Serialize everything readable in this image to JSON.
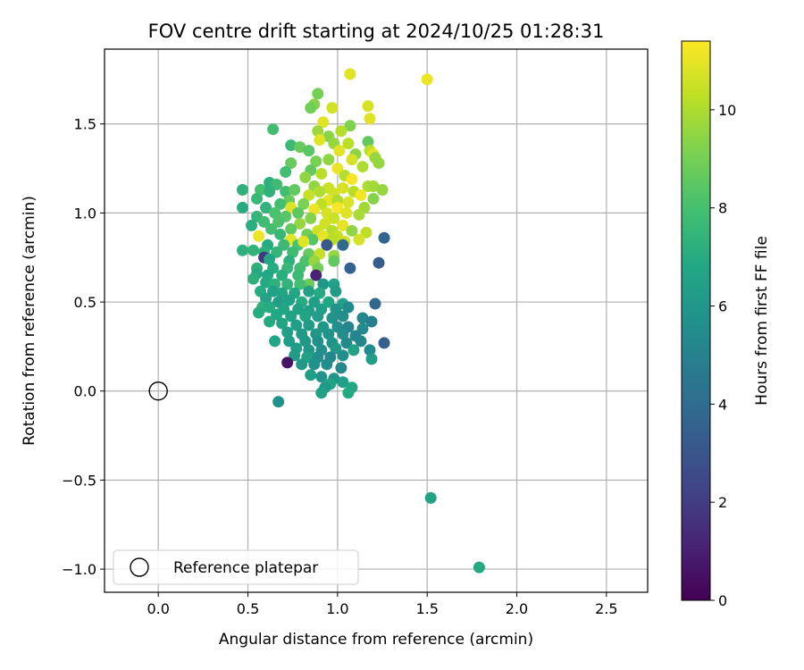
{
  "chart_data": {
    "type": "scatter",
    "title": "FOV centre drift starting at 2024/10/25 01:28:31",
    "xlabel": "Angular distance from reference (arcmin)",
    "ylabel": "Rotation from reference (arcmin)",
    "xlim": [
      -0.3,
      2.73
    ],
    "ylim": [
      -1.13,
      1.92
    ],
    "x_ticks": [
      0.0,
      0.5,
      1.0,
      1.5,
      2.0,
      2.5
    ],
    "x_tick_labels": [
      "0.0",
      "0.5",
      "1.0",
      "1.5",
      "2.0",
      "2.5"
    ],
    "y_ticks": [
      -1.0,
      -0.5,
      0.0,
      0.5,
      1.0,
      1.5
    ],
    "y_tick_labels": [
      "−1.0",
      "−0.5",
      "0.0",
      "0.5",
      "1.0",
      "1.5"
    ],
    "grid": true,
    "legend": {
      "location": "lower-left",
      "entries": [
        "Reference platepar"
      ]
    },
    "reference_point": {
      "x": 0.0,
      "y": 0.0,
      "marker": "open-circle",
      "label": "Reference platepar"
    },
    "colorbar": {
      "label": "Hours from first FF file",
      "colormap": "viridis",
      "range": [
        0,
        11.4
      ],
      "ticks": [
        0,
        2,
        4,
        6,
        8,
        10
      ],
      "tick_labels": [
        "0",
        "2",
        "4",
        "6",
        "8",
        "10"
      ]
    },
    "points": [
      [
        1.07,
        1.78,
        10.9
      ],
      [
        1.5,
        1.75,
        11.1
      ],
      [
        0.89,
        1.67,
        9.0
      ],
      [
        0.87,
        1.61,
        9.3
      ],
      [
        0.85,
        1.59,
        8.9
      ],
      [
        0.97,
        1.59,
        10.6
      ],
      [
        1.17,
        1.6,
        10.7
      ],
      [
        0.92,
        1.51,
        10.9
      ],
      [
        0.64,
        1.47,
        7.9
      ],
      [
        1.07,
        1.49,
        9.2
      ],
      [
        1.18,
        1.53,
        10.9
      ],
      [
        1.02,
        1.46,
        10.1
      ],
      [
        0.89,
        1.46,
        9.7
      ],
      [
        0.95,
        1.43,
        9.4
      ],
      [
        0.9,
        1.41,
        10.9
      ],
      [
        0.98,
        1.39,
        9.6
      ],
      [
        1.06,
        1.39,
        10.2
      ],
      [
        1.17,
        1.4,
        8.6
      ],
      [
        0.74,
        1.38,
        7.7
      ],
      [
        0.79,
        1.37,
        8.7
      ],
      [
        0.84,
        1.35,
        8.4
      ],
      [
        1.01,
        1.35,
        10.9
      ],
      [
        1.1,
        1.33,
        9.4
      ],
      [
        1.18,
        1.35,
        10.3
      ],
      [
        1.2,
        1.33,
        11.0
      ],
      [
        1.21,
        1.31,
        9.6
      ],
      [
        1.08,
        1.3,
        10.7
      ],
      [
        0.95,
        1.3,
        9.5
      ],
      [
        0.88,
        1.29,
        9.1
      ],
      [
        0.74,
        1.28,
        8.7
      ],
      [
        1.0,
        1.25,
        11.1
      ],
      [
        1.23,
        1.28,
        9.6
      ],
      [
        1.14,
        1.26,
        10.0
      ],
      [
        0.85,
        1.24,
        8.6
      ],
      [
        0.71,
        1.23,
        7.9
      ],
      [
        0.91,
        1.22,
        10.2
      ],
      [
        1.04,
        1.21,
        10.1
      ],
      [
        0.82,
        1.2,
        9.5
      ],
      [
        0.62,
        1.17,
        7.2
      ],
      [
        0.66,
        1.16,
        7.8
      ],
      [
        1.08,
        1.19,
        11.3
      ],
      [
        1.17,
        1.15,
        10.0
      ],
      [
        1.2,
        1.15,
        9.8
      ],
      [
        0.87,
        1.15,
        9.5
      ],
      [
        0.95,
        1.14,
        10.5
      ],
      [
        1.03,
        1.14,
        10.7
      ],
      [
        0.47,
        1.13,
        7.3
      ],
      [
        0.57,
        1.13,
        8.0
      ],
      [
        0.62,
        1.12,
        7.3
      ],
      [
        0.71,
        1.12,
        7.9
      ],
      [
        0.76,
        1.13,
        8.6
      ],
      [
        0.9,
        1.12,
        10.0
      ],
      [
        0.98,
        1.11,
        10.6
      ],
      [
        1.09,
        1.12,
        10.2
      ],
      [
        1.25,
        1.13,
        9.6
      ],
      [
        0.84,
        1.1,
        10.4
      ],
      [
        1.13,
        1.1,
        11.2
      ],
      [
        0.55,
        1.08,
        7.6
      ],
      [
        0.73,
        1.07,
        8.7
      ],
      [
        0.95,
        1.07,
        11.0
      ],
      [
        1.0,
        1.07,
        10.0
      ],
      [
        1.2,
        1.08,
        9.3
      ],
      [
        1.06,
        1.06,
        10.8
      ],
      [
        0.68,
        1.05,
        7.9
      ],
      [
        0.81,
        1.05,
        9.1
      ],
      [
        0.91,
        1.05,
        10.3
      ],
      [
        0.47,
        1.03,
        7.0
      ],
      [
        0.6,
        1.03,
        7.4
      ],
      [
        0.74,
        1.03,
        10.8
      ],
      [
        0.87,
        1.02,
        11.1
      ],
      [
        1.0,
        1.03,
        11.3
      ],
      [
        1.15,
        1.03,
        9.8
      ],
      [
        0.65,
        1.0,
        8.1
      ],
      [
        0.78,
        1.0,
        8.5
      ],
      [
        0.94,
        1.0,
        10.7
      ],
      [
        1.05,
        1.0,
        10.9
      ],
      [
        1.12,
        0.99,
        9.9
      ],
      [
        0.55,
        0.98,
        7.5
      ],
      [
        0.71,
        0.98,
        8.4
      ],
      [
        0.85,
        0.97,
        9.3
      ],
      [
        0.98,
        0.97,
        10.5
      ],
      [
        0.59,
        0.95,
        7.8
      ],
      [
        0.67,
        0.95,
        8.2
      ],
      [
        0.79,
        0.94,
        9.6
      ],
      [
        0.93,
        0.94,
        10.6
      ],
      [
        1.03,
        0.93,
        11.0
      ],
      [
        0.52,
        0.93,
        7.1
      ],
      [
        0.63,
        0.91,
        8.0
      ],
      [
        0.74,
        0.91,
        8.6
      ],
      [
        0.89,
        0.9,
        10.5
      ],
      [
        0.97,
        0.9,
        10.1
      ],
      [
        1.08,
        0.9,
        9.5
      ],
      [
        1.16,
        0.89,
        10.3
      ],
      [
        0.56,
        0.87,
        11.1
      ],
      [
        0.68,
        0.88,
        7.6
      ],
      [
        0.83,
        0.88,
        8.9
      ],
      [
        0.92,
        0.87,
        11.0
      ],
      [
        1.0,
        0.87,
        10.4
      ],
      [
        0.74,
        0.85,
        10.9
      ],
      [
        0.86,
        0.85,
        8.3
      ],
      [
        0.97,
        0.85,
        10.2
      ],
      [
        1.04,
        0.84,
        10.6
      ],
      [
        1.12,
        0.85,
        10.7
      ],
      [
        1.26,
        0.86,
        3.7
      ],
      [
        0.61,
        0.82,
        7.0
      ],
      [
        0.7,
        0.82,
        7.7
      ],
      [
        0.78,
        0.82,
        8.1
      ],
      [
        0.81,
        0.84,
        10.9
      ],
      [
        0.94,
        0.82,
        3.1
      ],
      [
        1.03,
        0.82,
        3.9
      ],
      [
        0.53,
        0.79,
        7.4
      ],
      [
        0.59,
        0.78,
        7.2
      ],
      [
        0.66,
        0.78,
        7.5
      ],
      [
        0.75,
        0.78,
        7.8
      ],
      [
        0.84,
        0.77,
        8.7
      ],
      [
        0.9,
        0.77,
        10.4
      ],
      [
        0.98,
        0.76,
        9.6
      ],
      [
        0.47,
        0.79,
        7.2
      ],
      [
        0.59,
        0.75,
        1.8
      ],
      [
        0.62,
        0.74,
        6.8
      ],
      [
        0.73,
        0.73,
        7.2
      ],
      [
        0.82,
        0.73,
        8.2
      ],
      [
        0.87,
        0.73,
        9.6
      ],
      [
        0.98,
        0.73,
        8.6
      ],
      [
        1.23,
        0.72,
        3.3
      ],
      [
        0.55,
        0.69,
        7.3
      ],
      [
        0.64,
        0.69,
        7.0
      ],
      [
        0.72,
        0.69,
        7.6
      ],
      [
        0.79,
        0.69,
        7.9
      ],
      [
        0.89,
        0.69,
        9.0
      ],
      [
        1.07,
        0.69,
        3.5
      ],
      [
        0.55,
        0.66,
        6.9
      ],
      [
        0.61,
        0.65,
        6.8
      ],
      [
        0.69,
        0.65,
        7.1
      ],
      [
        0.78,
        0.65,
        7.7
      ],
      [
        0.88,
        0.65,
        1.1
      ],
      [
        0.84,
        0.6,
        8.8
      ],
      [
        0.53,
        0.63,
        7.2
      ],
      [
        0.6,
        0.61,
        6.9
      ],
      [
        0.65,
        0.6,
        7.3
      ],
      [
        0.72,
        0.6,
        7.4
      ],
      [
        0.79,
        0.6,
        7.9
      ],
      [
        0.92,
        0.6,
        6.0
      ],
      [
        0.98,
        0.6,
        6.5
      ],
      [
        0.57,
        0.56,
        7.0
      ],
      [
        0.64,
        0.56,
        6.5
      ],
      [
        0.69,
        0.55,
        6.7
      ],
      [
        0.76,
        0.55,
        6.8
      ],
      [
        0.84,
        0.56,
        6.5
      ],
      [
        0.9,
        0.55,
        6.9
      ],
      [
        0.99,
        0.56,
        6.2
      ],
      [
        0.6,
        0.52,
        6.6
      ],
      [
        0.67,
        0.5,
        6.4
      ],
      [
        0.73,
        0.51,
        6.5
      ],
      [
        0.8,
        0.5,
        7.0
      ],
      [
        0.87,
        0.5,
        6.4
      ],
      [
        0.95,
        0.5,
        6.8
      ],
      [
        1.03,
        0.49,
        6.5
      ],
      [
        1.21,
        0.49,
        3.8
      ],
      [
        0.58,
        0.47,
        7.2
      ],
      [
        0.62,
        0.47,
        7.0
      ],
      [
        0.7,
        0.46,
        6.7
      ],
      [
        0.78,
        0.46,
        6.5
      ],
      [
        0.84,
        0.45,
        6.3
      ],
      [
        0.91,
        0.46,
        6.4
      ],
      [
        0.99,
        0.46,
        5.8
      ],
      [
        1.06,
        0.47,
        5.4
      ],
      [
        0.56,
        0.44,
        7.0
      ],
      [
        0.66,
        0.43,
        6.8
      ],
      [
        0.74,
        0.42,
        6.6
      ],
      [
        0.82,
        0.42,
        6.7
      ],
      [
        0.89,
        0.42,
        6.3
      ],
      [
        0.97,
        0.41,
        5.8
      ],
      [
        1.03,
        0.42,
        5.6
      ],
      [
        1.14,
        0.41,
        5.2
      ],
      [
        1.19,
        0.39,
        4.9
      ],
      [
        0.62,
        0.39,
        6.9
      ],
      [
        0.69,
        0.38,
        6.7
      ],
      [
        0.77,
        0.37,
        6.4
      ],
      [
        0.84,
        0.37,
        6.2
      ],
      [
        0.92,
        0.36,
        6.0
      ],
      [
        1.0,
        0.36,
        5.6
      ],
      [
        1.06,
        0.36,
        5.1
      ],
      [
        1.14,
        0.35,
        5.4
      ],
      [
        0.72,
        0.33,
        6.5
      ],
      [
        0.8,
        0.32,
        6.2
      ],
      [
        0.88,
        0.32,
        6.0
      ],
      [
        0.95,
        0.32,
        5.8
      ],
      [
        1.03,
        0.32,
        5.5
      ],
      [
        1.1,
        0.31,
        5.1
      ],
      [
        0.65,
        0.28,
        6.7
      ],
      [
        0.73,
        0.28,
        6.3
      ],
      [
        0.82,
        0.28,
        6.1
      ],
      [
        0.89,
        0.28,
        5.7
      ],
      [
        0.97,
        0.27,
        5.8
      ],
      [
        1.05,
        0.27,
        5.3
      ],
      [
        1.13,
        0.28,
        5.2
      ],
      [
        1.26,
        0.27,
        3.4
      ],
      [
        0.77,
        0.24,
        6.3
      ],
      [
        0.84,
        0.23,
        6.0
      ],
      [
        0.91,
        0.23,
        5.6
      ],
      [
        0.99,
        0.24,
        6.1
      ],
      [
        1.09,
        0.23,
        6.6
      ],
      [
        1.18,
        0.23,
        5.4
      ],
      [
        0.76,
        0.2,
        6.2
      ],
      [
        0.83,
        0.19,
        6.5
      ],
      [
        0.89,
        0.19,
        5.5
      ],
      [
        0.96,
        0.19,
        5.2
      ],
      [
        1.03,
        0.2,
        5.6
      ],
      [
        1.19,
        0.18,
        6.3
      ],
      [
        0.72,
        0.16,
        0.6
      ],
      [
        0.8,
        0.15,
        6.1
      ],
      [
        0.87,
        0.15,
        5.7
      ],
      [
        0.94,
        0.15,
        5.5
      ],
      [
        1.02,
        0.13,
        5.3
      ],
      [
        0.85,
        0.09,
        6.3
      ],
      [
        0.91,
        0.08,
        5.8
      ],
      [
        0.98,
        0.07,
        6.0
      ],
      [
        0.96,
        0.04,
        6.6
      ],
      [
        1.03,
        0.05,
        6.4
      ],
      [
        0.93,
        0.02,
        6.1
      ],
      [
        1.08,
        0.02,
        6.8
      ],
      [
        0.91,
        -0.01,
        6.5
      ],
      [
        1.06,
        -0.01,
        6.9
      ],
      [
        0.67,
        -0.06,
        5.7
      ],
      [
        1.52,
        -0.6,
        6.6
      ],
      [
        1.79,
        -0.99,
        6.9
      ]
    ]
  }
}
